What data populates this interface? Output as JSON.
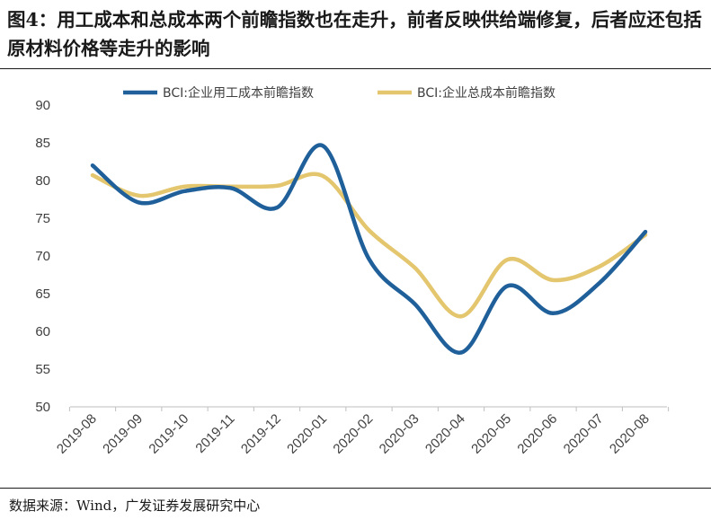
{
  "header": {
    "title": "图4：用工成本和总成本两个前瞻指数也在走升，前者反映供给端修复，后者应还包括原材料价格等走升的影响"
  },
  "footer": {
    "source": "数据来源：Wind，广发证券发展研究中心"
  },
  "chart_data": {
    "type": "line",
    "title": "",
    "xlabel": "",
    "ylabel": "",
    "categories": [
      "2019-08",
      "2019-09",
      "2019-10",
      "2019-11",
      "2019-12",
      "2020-01",
      "2020-02",
      "2020-03",
      "2020-04",
      "2020-05",
      "2020-06",
      "2020-07",
      "2020-08"
    ],
    "ylim": [
      50,
      90
    ],
    "yticks": [
      50,
      55,
      60,
      65,
      70,
      75,
      80,
      85,
      90
    ],
    "grid": false,
    "legend_position": "top",
    "series": [
      {
        "name": "BCI:企业用工成本前瞻指数",
        "color": "#1f5f9a",
        "values": [
          82.0,
          77.1,
          78.6,
          79.0,
          76.4,
          84.6,
          69.6,
          63.6,
          57.2,
          66.0,
          62.4,
          66.4,
          73.2
        ]
      },
      {
        "name": "BCI:企业总成本前瞻指数",
        "color": "#e3c66e",
        "values": [
          80.7,
          78.0,
          79.2,
          79.2,
          79.3,
          80.6,
          73.4,
          68.4,
          62.0,
          69.5,
          66.8,
          68.6,
          72.8
        ]
      }
    ]
  }
}
